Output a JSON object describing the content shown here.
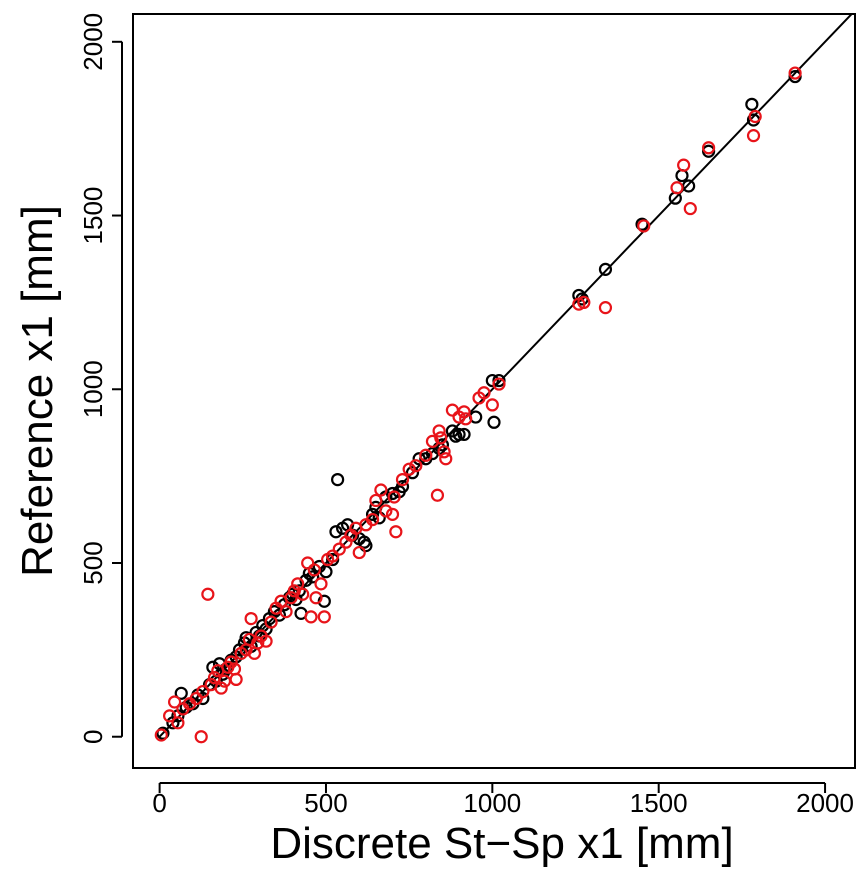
{
  "chart_data": {
    "type": "scatter",
    "xlabel": "Discrete St−Sp x1 [mm]",
    "ylabel": "Reference x1 [mm]",
    "xlim": [
      -80,
      2090
    ],
    "ylim": [
      -90,
      2080
    ],
    "xticks": [
      0,
      500,
      1000,
      1500,
      2000
    ],
    "yticks": [
      0,
      500,
      1000,
      1500,
      2000
    ],
    "xtick_labels": [
      "0",
      "500",
      "1000",
      "1500",
      "2000"
    ],
    "ytick_labels": [
      "0",
      "500",
      "1000",
      "1500",
      "2000"
    ],
    "identity_line": {
      "from": [
        0,
        0
      ],
      "to": [
        2090,
        2090
      ]
    },
    "grid": false,
    "legend": "none",
    "series": [
      {
        "color": "#000000",
        "marker": "open-circle",
        "points": [
          [
            10,
            10
          ],
          [
            40,
            40
          ],
          [
            55,
            60
          ],
          [
            65,
            125
          ],
          [
            80,
            85
          ],
          [
            100,
            95
          ],
          [
            115,
            120
          ],
          [
            130,
            110
          ],
          [
            150,
            150
          ],
          [
            160,
            200
          ],
          [
            170,
            160
          ],
          [
            180,
            210
          ],
          [
            190,
            180
          ],
          [
            200,
            195
          ],
          [
            215,
            220
          ],
          [
            230,
            230
          ],
          [
            240,
            250
          ],
          [
            255,
            270
          ],
          [
            260,
            285
          ],
          [
            275,
            260
          ],
          [
            290,
            300
          ],
          [
            300,
            290
          ],
          [
            310,
            320
          ],
          [
            320,
            310
          ],
          [
            330,
            340
          ],
          [
            345,
            360
          ],
          [
            360,
            350
          ],
          [
            375,
            380
          ],
          [
            390,
            400
          ],
          [
            400,
            410
          ],
          [
            410,
            395
          ],
          [
            420,
            420
          ],
          [
            425,
            355
          ],
          [
            440,
            450
          ],
          [
            450,
            470
          ],
          [
            460,
            460
          ],
          [
            480,
            490
          ],
          [
            495,
            390
          ],
          [
            500,
            475
          ],
          [
            520,
            510
          ],
          [
            530,
            590
          ],
          [
            535,
            740
          ],
          [
            550,
            600
          ],
          [
            565,
            610
          ],
          [
            580,
            580
          ],
          [
            600,
            570
          ],
          [
            615,
            560
          ],
          [
            620,
            550
          ],
          [
            640,
            640
          ],
          [
            650,
            660
          ],
          [
            660,
            630
          ],
          [
            680,
            690
          ],
          [
            700,
            700
          ],
          [
            720,
            705
          ],
          [
            730,
            720
          ],
          [
            760,
            760
          ],
          [
            780,
            800
          ],
          [
            800,
            800
          ],
          [
            820,
            815
          ],
          [
            840,
            830
          ],
          [
            850,
            840
          ],
          [
            880,
            880
          ],
          [
            890,
            865
          ],
          [
            900,
            870
          ],
          [
            915,
            870
          ],
          [
            950,
            920
          ],
          [
            1000,
            1025
          ],
          [
            1005,
            905
          ],
          [
            1020,
            1025
          ],
          [
            1260,
            1270
          ],
          [
            1270,
            1260
          ],
          [
            1340,
            1345
          ],
          [
            1450,
            1475
          ],
          [
            1550,
            1550
          ],
          [
            1570,
            1615
          ],
          [
            1590,
            1585
          ],
          [
            1650,
            1685
          ],
          [
            1780,
            1820
          ],
          [
            1785,
            1775
          ],
          [
            1910,
            1900
          ]
        ]
      },
      {
        "color": "#e8141a",
        "marker": "open-circle",
        "points": [
          [
            5,
            5
          ],
          [
            30,
            60
          ],
          [
            45,
            100
          ],
          [
            55,
            40
          ],
          [
            70,
            80
          ],
          [
            90,
            95
          ],
          [
            110,
            110
          ],
          [
            125,
            0
          ],
          [
            130,
            130
          ],
          [
            145,
            410
          ],
          [
            155,
            150
          ],
          [
            165,
            170
          ],
          [
            175,
            190
          ],
          [
            185,
            140
          ],
          [
            195,
            160
          ],
          [
            205,
            200
          ],
          [
            215,
            215
          ],
          [
            225,
            195
          ],
          [
            230,
            165
          ],
          [
            245,
            240
          ],
          [
            260,
            250
          ],
          [
            270,
            280
          ],
          [
            275,
            340
          ],
          [
            285,
            240
          ],
          [
            295,
            270
          ],
          [
            305,
            290
          ],
          [
            320,
            275
          ],
          [
            335,
            330
          ],
          [
            350,
            370
          ],
          [
            365,
            390
          ],
          [
            380,
            360
          ],
          [
            395,
            400
          ],
          [
            405,
            420
          ],
          [
            415,
            440
          ],
          [
            430,
            410
          ],
          [
            445,
            500
          ],
          [
            455,
            345
          ],
          [
            465,
            480
          ],
          [
            470,
            400
          ],
          [
            485,
            440
          ],
          [
            495,
            345
          ],
          [
            505,
            510
          ],
          [
            520,
            520
          ],
          [
            540,
            540
          ],
          [
            560,
            560
          ],
          [
            575,
            580
          ],
          [
            590,
            600
          ],
          [
            600,
            530
          ],
          [
            620,
            610
          ],
          [
            640,
            625
          ],
          [
            650,
            680
          ],
          [
            665,
            710
          ],
          [
            680,
            650
          ],
          [
            700,
            640
          ],
          [
            705,
            690
          ],
          [
            710,
            590
          ],
          [
            730,
            740
          ],
          [
            750,
            770
          ],
          [
            770,
            780
          ],
          [
            800,
            810
          ],
          [
            820,
            850
          ],
          [
            835,
            695
          ],
          [
            840,
            880
          ],
          [
            845,
            860
          ],
          [
            855,
            820
          ],
          [
            860,
            800
          ],
          [
            880,
            940
          ],
          [
            900,
            920
          ],
          [
            915,
            935
          ],
          [
            920,
            915
          ],
          [
            960,
            975
          ],
          [
            975,
            990
          ],
          [
            1000,
            955
          ],
          [
            1020,
            1015
          ],
          [
            1260,
            1245
          ],
          [
            1275,
            1250
          ],
          [
            1340,
            1235
          ],
          [
            1455,
            1470
          ],
          [
            1555,
            1580
          ],
          [
            1575,
            1645
          ],
          [
            1595,
            1520
          ],
          [
            1650,
            1695
          ],
          [
            1785,
            1730
          ],
          [
            1790,
            1785
          ],
          [
            1910,
            1910
          ]
        ]
      }
    ]
  }
}
